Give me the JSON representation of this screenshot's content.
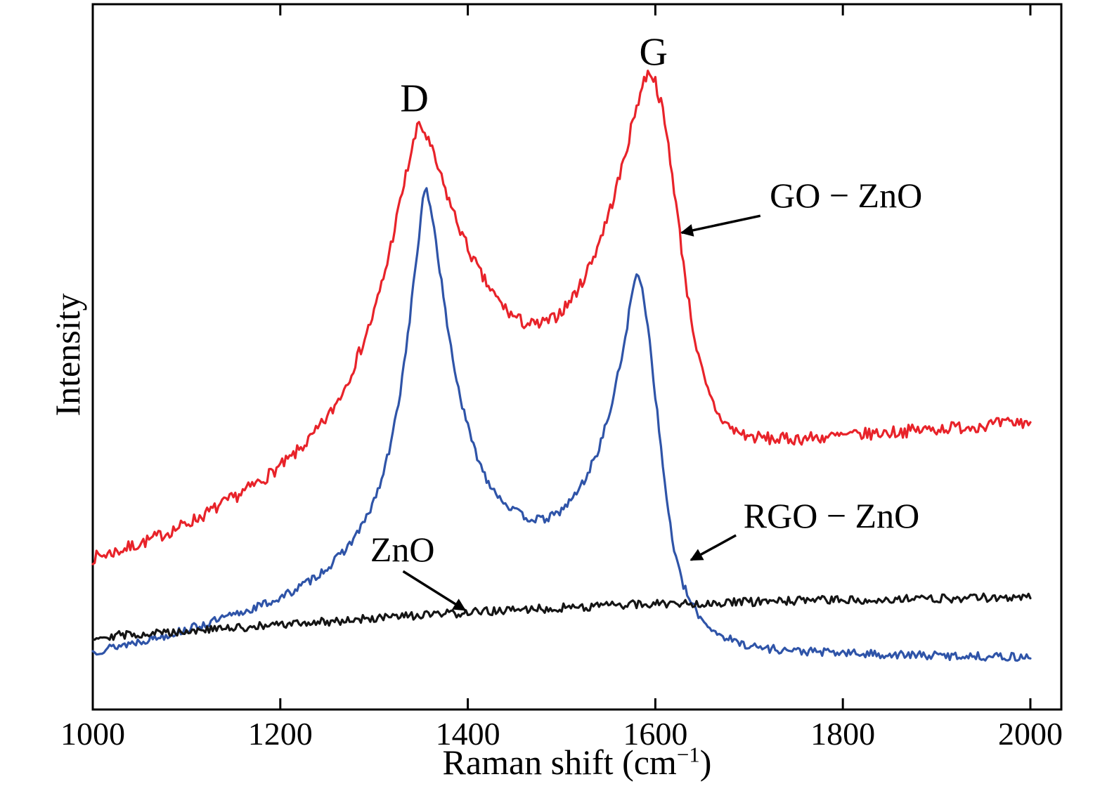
{
  "figure": {
    "background": "#ffffff",
    "axis_color": "#000000"
  },
  "chart_data": {
    "type": "line",
    "title": "",
    "xlabel": "Raman shift (cm⁻¹)",
    "xlabel_main": "Raman shift (cm",
    "xlabel_sup": "−1",
    "xlabel_close": ")",
    "ylabel": "Intensity",
    "x_ticks": [
      1000,
      1200,
      1400,
      1600,
      1800,
      2000
    ],
    "xlim": [
      1000,
      2033
    ],
    "ylim": [
      0,
      1
    ],
    "y_ticks": [],
    "y_units": "arbitrary",
    "grid": false,
    "legend_position": "inline-annotations",
    "series": [
      {
        "name": "GO − ZnO",
        "color": "#e8232a",
        "noise": 0.009,
        "seed": 7,
        "peaks": [
          {
            "label": "D",
            "center": 1345
          },
          {
            "label": "G",
            "center": 1592
          }
        ],
        "anchors": [
          [
            1000,
            0.215
          ],
          [
            1030,
            0.226
          ],
          [
            1060,
            0.24
          ],
          [
            1090,
            0.257
          ],
          [
            1120,
            0.277
          ],
          [
            1150,
            0.3
          ],
          [
            1180,
            0.325
          ],
          [
            1210,
            0.355
          ],
          [
            1235,
            0.388
          ],
          [
            1255,
            0.423
          ],
          [
            1270,
            0.46
          ],
          [
            1285,
            0.508
          ],
          [
            1300,
            0.563
          ],
          [
            1312,
            0.622
          ],
          [
            1322,
            0.683
          ],
          [
            1332,
            0.745
          ],
          [
            1340,
            0.792
          ],
          [
            1348,
            0.832
          ],
          [
            1356,
            0.812
          ],
          [
            1364,
            0.784
          ],
          [
            1374,
            0.744
          ],
          [
            1386,
            0.7
          ],
          [
            1400,
            0.654
          ],
          [
            1415,
            0.614
          ],
          [
            1430,
            0.584
          ],
          [
            1445,
            0.561
          ],
          [
            1460,
            0.548
          ],
          [
            1475,
            0.545
          ],
          [
            1490,
            0.553
          ],
          [
            1505,
            0.572
          ],
          [
            1520,
            0.601
          ],
          [
            1535,
            0.645
          ],
          [
            1550,
            0.701
          ],
          [
            1562,
            0.756
          ],
          [
            1572,
            0.81
          ],
          [
            1580,
            0.856
          ],
          [
            1588,
            0.892
          ],
          [
            1594,
            0.906
          ],
          [
            1600,
            0.89
          ],
          [
            1607,
            0.854
          ],
          [
            1614,
            0.799
          ],
          [
            1621,
            0.729
          ],
          [
            1628,
            0.654
          ],
          [
            1636,
            0.574
          ],
          [
            1645,
            0.504
          ],
          [
            1655,
            0.453
          ],
          [
            1668,
            0.416
          ],
          [
            1682,
            0.397
          ],
          [
            1700,
            0.387
          ],
          [
            1730,
            0.383
          ],
          [
            1780,
            0.386
          ],
          [
            1840,
            0.392
          ],
          [
            1900,
            0.398
          ],
          [
            1950,
            0.403
          ],
          [
            2000,
            0.408
          ]
        ]
      },
      {
        "name": "RGO − ZnO",
        "color": "#2f54a8",
        "noise": 0.006,
        "seed": 13,
        "peaks": [
          {
            "label": "D",
            "center": 1352
          },
          {
            "label": "G",
            "center": 1581
          }
        ],
        "anchors": [
          [
            1000,
            0.082
          ],
          [
            1040,
            0.094
          ],
          [
            1080,
            0.106
          ],
          [
            1120,
            0.121
          ],
          [
            1160,
            0.138
          ],
          [
            1200,
            0.158
          ],
          [
            1230,
            0.181
          ],
          [
            1255,
            0.206
          ],
          [
            1275,
            0.236
          ],
          [
            1292,
            0.271
          ],
          [
            1306,
            0.316
          ],
          [
            1318,
            0.376
          ],
          [
            1328,
            0.451
          ],
          [
            1336,
            0.531
          ],
          [
            1342,
            0.601
          ],
          [
            1348,
            0.672
          ],
          [
            1352,
            0.72
          ],
          [
            1356,
            0.738
          ],
          [
            1362,
            0.701
          ],
          [
            1368,
            0.645
          ],
          [
            1376,
            0.564
          ],
          [
            1385,
            0.489
          ],
          [
            1395,
            0.424
          ],
          [
            1407,
            0.369
          ],
          [
            1420,
            0.327
          ],
          [
            1435,
            0.299
          ],
          [
            1450,
            0.281
          ],
          [
            1465,
            0.271
          ],
          [
            1480,
            0.269
          ],
          [
            1495,
            0.277
          ],
          [
            1510,
            0.296
          ],
          [
            1525,
            0.326
          ],
          [
            1540,
            0.371
          ],
          [
            1552,
            0.424
          ],
          [
            1562,
            0.485
          ],
          [
            1570,
            0.545
          ],
          [
            1576,
            0.596
          ],
          [
            1581,
            0.618
          ],
          [
            1586,
            0.601
          ],
          [
            1592,
            0.545
          ],
          [
            1599,
            0.459
          ],
          [
            1606,
            0.369
          ],
          [
            1613,
            0.289
          ],
          [
            1620,
            0.227
          ],
          [
            1628,
            0.182
          ],
          [
            1638,
            0.151
          ],
          [
            1650,
            0.127
          ],
          [
            1665,
            0.109
          ],
          [
            1685,
            0.096
          ],
          [
            1710,
            0.088
          ],
          [
            1750,
            0.083
          ],
          [
            1800,
            0.08
          ],
          [
            1870,
            0.077
          ],
          [
            1930,
            0.076
          ],
          [
            2000,
            0.074
          ]
        ]
      },
      {
        "name": "ZnO",
        "color": "#151515",
        "noise": 0.006,
        "seed": 29,
        "peaks": [],
        "anchors": [
          [
            1000,
            0.103
          ],
          [
            1060,
            0.108
          ],
          [
            1120,
            0.113
          ],
          [
            1180,
            0.118
          ],
          [
            1240,
            0.124
          ],
          [
            1300,
            0.129
          ],
          [
            1360,
            0.134
          ],
          [
            1420,
            0.139
          ],
          [
            1480,
            0.143
          ],
          [
            1540,
            0.147
          ],
          [
            1600,
            0.15
          ],
          [
            1660,
            0.151
          ],
          [
            1720,
            0.153
          ],
          [
            1780,
            0.155
          ],
          [
            1840,
            0.156
          ],
          [
            1900,
            0.157
          ],
          [
            2000,
            0.16
          ]
        ]
      }
    ],
    "annotations": [
      {
        "id": "peak-D",
        "text": "D",
        "x": 1343,
        "y": 0.848,
        "anchor": "middle",
        "font": 56
      },
      {
        "id": "peak-G",
        "text": "G",
        "x": 1598,
        "y": 0.914,
        "anchor": "middle",
        "font": 56
      },
      {
        "id": "label-go-zno",
        "text": "GO − ZnO",
        "x": 1722,
        "y": 0.712,
        "anchor": "start",
        "font": 50,
        "arrow": {
          "x1": 1712,
          "y1": 0.7,
          "x2": 1628,
          "y2": 0.676
        }
      },
      {
        "id": "label-rgo-zno",
        "text": "RGO − ZnO",
        "x": 1694,
        "y": 0.258,
        "anchor": "start",
        "font": 50,
        "arrow": {
          "x1": 1686,
          "y1": 0.247,
          "x2": 1638,
          "y2": 0.212
        }
      },
      {
        "id": "label-zno",
        "text": "ZnO",
        "x": 1296,
        "y": 0.21,
        "anchor": "start",
        "font": 50,
        "arrow": {
          "x1": 1331,
          "y1": 0.196,
          "x2": 1397,
          "y2": 0.141
        }
      }
    ]
  }
}
